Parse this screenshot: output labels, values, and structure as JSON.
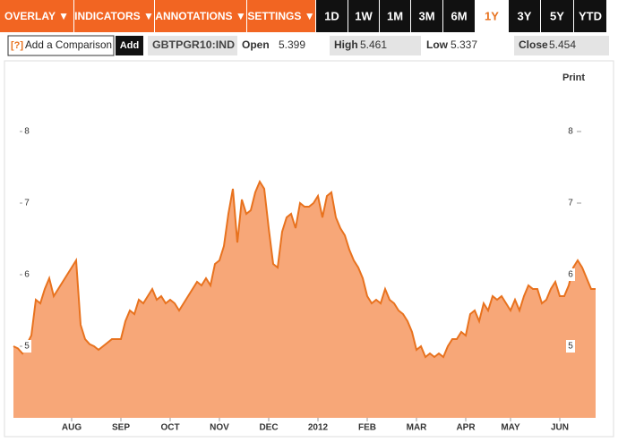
{
  "toolbar": {
    "menus": [
      "OVERLAY ▼",
      "INDICATORS ▼",
      "ANNOTATIONS ▼",
      "SETTINGS ▼"
    ],
    "ranges": [
      "1D",
      "1W",
      "1M",
      "3M",
      "6M",
      "1Y",
      "3Y",
      "5Y",
      "YTD"
    ],
    "active_range": "1Y"
  },
  "comparison": {
    "help": "[?]",
    "placeholder": "Add a Comparison",
    "button": "Add"
  },
  "quote": {
    "symbol": "GBTPGR10:IND",
    "open_label": "Open",
    "open": 5.399,
    "high_label": "High",
    "high": 5.461,
    "low_label": "Low",
    "low": 5.337,
    "close_label": "Close",
    "close": 5.454
  },
  "print": "Print",
  "chart_data": {
    "type": "area",
    "line_color": "#e8721e",
    "fill_color": "#f7a778",
    "ylim": [
      4,
      9
    ],
    "yticks": [
      5,
      6,
      7,
      8
    ],
    "categories": [
      null,
      null,
      null,
      null,
      null,
      null,
      null,
      null,
      null,
      null,
      null,
      null,
      null,
      "AUG",
      null,
      null,
      null,
      null,
      null,
      null,
      null,
      null,
      null,
      null,
      "SEP",
      null,
      null,
      null,
      null,
      null,
      null,
      null,
      null,
      null,
      null,
      "OCT",
      null,
      null,
      null,
      null,
      null,
      null,
      null,
      null,
      null,
      null,
      "NOV",
      null,
      null,
      null,
      null,
      null,
      null,
      null,
      null,
      null,
      null,
      "DEC",
      null,
      null,
      null,
      null,
      null,
      null,
      null,
      null,
      null,
      null,
      "2012",
      null,
      null,
      null,
      null,
      null,
      null,
      null,
      null,
      null,
      null,
      "FEB",
      null,
      null,
      null,
      null,
      null,
      null,
      null,
      null,
      null,
      null,
      "MAR",
      null,
      null,
      null,
      null,
      null,
      null,
      null,
      null,
      null,
      null,
      "APR",
      null,
      null,
      null,
      null,
      null,
      null,
      null,
      null,
      null,
      "MAY",
      null,
      null,
      null,
      null,
      null,
      null,
      null,
      null,
      null,
      null,
      "JUN",
      null,
      null,
      null,
      null,
      null,
      null,
      null,
      null
    ],
    "values": [
      5.0,
      4.97,
      4.9,
      5.03,
      5.15,
      5.65,
      5.6,
      5.8,
      5.95,
      5.7,
      5.8,
      5.9,
      6.0,
      6.1,
      6.2,
      5.3,
      5.1,
      5.03,
      5.0,
      4.95,
      5.0,
      5.05,
      5.1,
      5.1,
      5.1,
      5.35,
      5.5,
      5.45,
      5.65,
      5.6,
      5.7,
      5.8,
      5.65,
      5.7,
      5.6,
      5.65,
      5.6,
      5.5,
      5.6,
      5.7,
      5.8,
      5.9,
      5.85,
      5.95,
      5.85,
      6.15,
      6.2,
      6.4,
      6.85,
      7.2,
      6.45,
      7.05,
      6.85,
      6.9,
      7.15,
      7.3,
      7.2,
      6.65,
      6.15,
      6.1,
      6.6,
      6.8,
      6.85,
      6.65,
      7.0,
      6.95,
      6.95,
      7.0,
      7.1,
      6.8,
      7.1,
      7.15,
      6.8,
      6.65,
      6.55,
      6.35,
      6.2,
      6.1,
      5.95,
      5.7,
      5.6,
      5.65,
      5.6,
      5.8,
      5.65,
      5.6,
      5.5,
      5.45,
      5.35,
      5.2,
      4.95,
      5.0,
      4.85,
      4.9,
      4.85,
      4.9,
      4.85,
      5.0,
      5.1,
      5.1,
      5.2,
      5.15,
      5.45,
      5.5,
      5.35,
      5.6,
      5.5,
      5.7,
      5.65,
      5.7,
      5.6,
      5.5,
      5.65,
      5.5,
      5.7,
      5.85,
      5.8,
      5.8,
      5.6,
      5.65,
      5.8,
      5.9,
      5.7,
      5.7,
      5.85,
      6.1,
      6.2,
      6.1,
      5.95,
      5.8,
      5.8
    ]
  }
}
